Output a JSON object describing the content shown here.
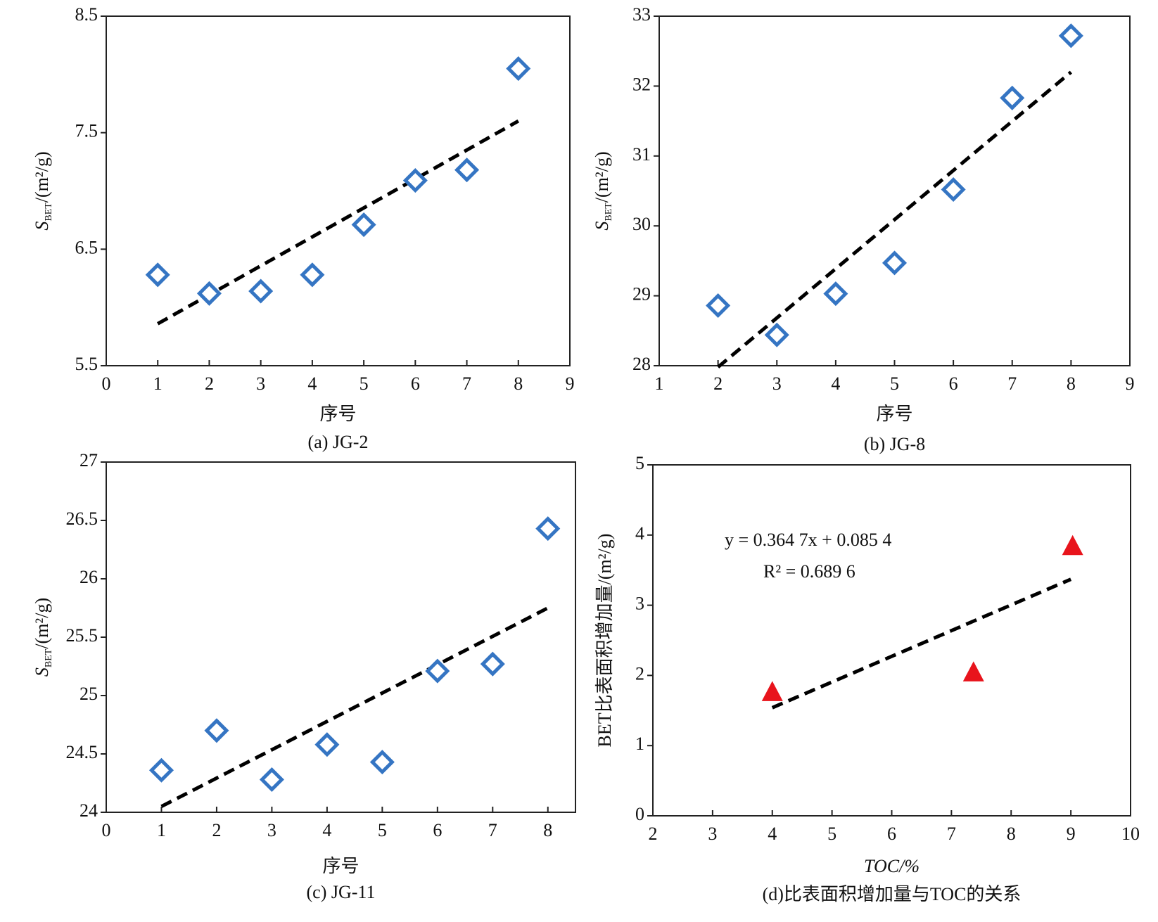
{
  "chart_data": [
    {
      "type": "scatter",
      "marker": "diamond",
      "color": "#3575c3",
      "trend_color": "#000000",
      "x": [
        1,
        2,
        3,
        4,
        5,
        6,
        7,
        8
      ],
      "values": [
        6.28,
        6.12,
        6.14,
        6.28,
        6.71,
        7.09,
        7.18,
        8.05
      ],
      "trend": {
        "x": [
          1,
          8
        ],
        "values": [
          5.86,
          7.6
        ]
      },
      "xlim": [
        0,
        9
      ],
      "ylim": [
        5.5,
        8.5
      ],
      "xticks": [
        0,
        1,
        2,
        3,
        4,
        5,
        6,
        7,
        8,
        9
      ],
      "yticks": [
        5.5,
        6.5,
        7.5,
        8.5
      ],
      "xlabel": "序号",
      "ylabel": {
        "main": "S",
        "sub": "BET",
        "rest": "/(m²/g)"
      },
      "caption": "(a) JG-2"
    },
    {
      "type": "scatter",
      "marker": "diamond",
      "color": "#3575c3",
      "trend_color": "#000000",
      "x": [
        2,
        3,
        4,
        5,
        6,
        7,
        8
      ],
      "values": [
        28.86,
        28.44,
        29.03,
        29.47,
        30.52,
        31.83,
        32.72
      ],
      "trend": {
        "x": [
          2,
          8
        ],
        "values": [
          27.98,
          32.2
        ]
      },
      "xlim": [
        1,
        9
      ],
      "ylim": [
        28,
        33
      ],
      "xticks": [
        1,
        2,
        3,
        4,
        5,
        6,
        7,
        8,
        9
      ],
      "yticks": [
        28,
        29,
        30,
        31,
        32,
        33
      ],
      "xlabel": "序号",
      "ylabel": {
        "main": "S",
        "sub": "BET",
        "rest": "/(m²/g)"
      },
      "caption": "(b) JG-8"
    },
    {
      "type": "scatter",
      "marker": "diamond",
      "color": "#3575c3",
      "trend_color": "#000000",
      "x": [
        1,
        2,
        3,
        4,
        5,
        6,
        7,
        8
      ],
      "values": [
        24.36,
        24.7,
        24.28,
        24.58,
        24.43,
        25.21,
        25.27,
        26.43
      ],
      "trend": {
        "x": [
          1,
          8
        ],
        "values": [
          24.05,
          25.75
        ]
      },
      "xlim": [
        0,
        8.5
      ],
      "ylim": [
        24,
        27
      ],
      "xticks": [
        0,
        1,
        2,
        3,
        4,
        5,
        6,
        7,
        8
      ],
      "yticks": [
        24,
        24.5,
        25,
        25.5,
        26,
        26.5,
        27
      ],
      "xlabel": "序号",
      "ylabel": {
        "main": "S",
        "sub": "BET",
        "rest": "/(m²/g)"
      },
      "caption": "(c) JG-11"
    },
    {
      "type": "scatter",
      "marker": "triangle",
      "color": "#e8141c",
      "trend_color": "#000000",
      "x": [
        4,
        7.37,
        9.03
      ],
      "values": [
        1.77,
        2.05,
        3.85
      ],
      "trend": {
        "x": [
          4,
          9
        ],
        "values": [
          1.54,
          3.37
        ]
      },
      "xlim": [
        2,
        10
      ],
      "ylim": [
        0,
        5
      ],
      "xticks": [
        2,
        3,
        4,
        5,
        6,
        7,
        8,
        9,
        10
      ],
      "yticks": [
        0,
        1,
        2,
        3,
        4,
        5
      ],
      "xlabel": "TOC/%",
      "ylabel": {
        "main": "BET比表面积增加量/(m²/g)"
      },
      "caption": "(d)比表面积增加量与TOC的关系",
      "annotations": [
        "y = 0.364 7x + 0.085 4",
        "R² = 0.689 6"
      ]
    }
  ]
}
